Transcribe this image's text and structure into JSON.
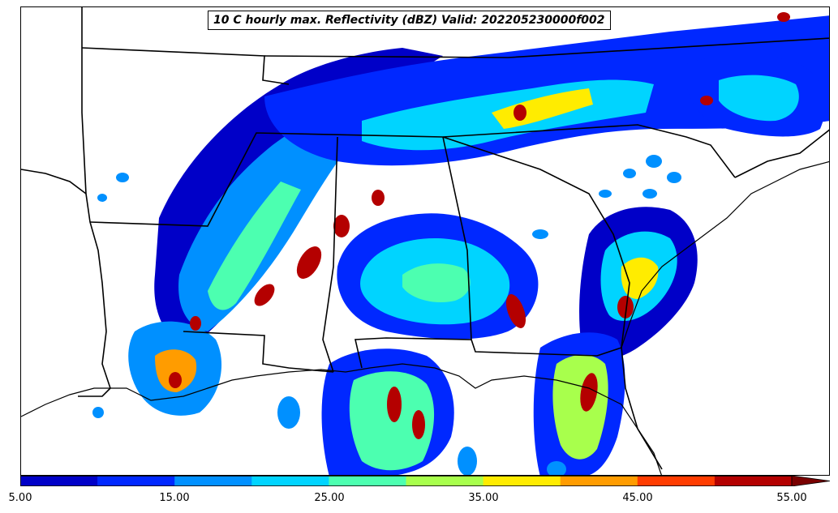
{
  "title": "10 C hourly max. Reflectivity (dBZ) Valid: 202205230000f002",
  "colorbar": {
    "tick_labels": [
      "5.00",
      "15.00",
      "25.00",
      "35.00",
      "45.00",
      "55.00"
    ],
    "colors": [
      "#0000c8",
      "#0028ff",
      "#0090ff",
      "#00d4ff",
      "#4cffb0",
      "#a8ff4c",
      "#ffec00",
      "#ff9c00",
      "#ff3c00",
      "#b40000",
      "#7a0000"
    ]
  },
  "chart_data": {
    "type": "heatmap",
    "title": "10 C hourly max. Reflectivity (dBZ) Valid: 202205230000f002",
    "variable_units": "dBZ",
    "colorbar_range": [
      5,
      55
    ],
    "colorbar_interval": 5,
    "colorbar_extend": "max",
    "colorbar_ticks": [
      5,
      15,
      25,
      35,
      45,
      55
    ],
    "region": "Southeastern United States"
  }
}
